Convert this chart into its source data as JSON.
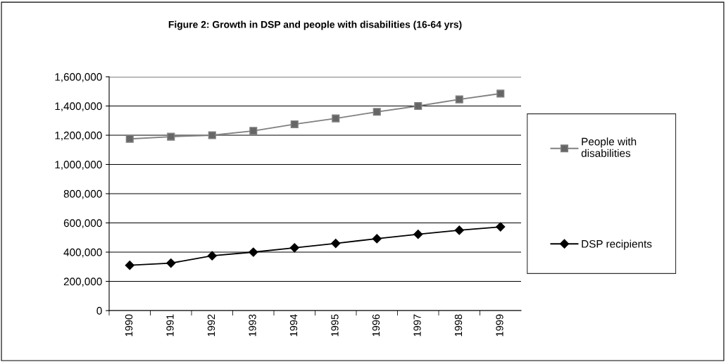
{
  "chart_data": {
    "type": "line",
    "title": "Figure 2: Growth in DSP and people with disabilities (16-64 yrs)",
    "categories": [
      "1990",
      "1991",
      "1992",
      "1993",
      "1994",
      "1995",
      "1996",
      "1997",
      "1998",
      "1999"
    ],
    "series": [
      {
        "name": "People with\ndisabilities",
        "color": "#808080",
        "marker": "square",
        "values": [
          1175000,
          1190000,
          1200000,
          1230000,
          1275000,
          1315000,
          1360000,
          1400000,
          1445000,
          1485000
        ]
      },
      {
        "name": "DSP recipients",
        "color": "#000000",
        "marker": "diamond",
        "values": [
          310000,
          325000,
          375000,
          400000,
          430000,
          460000,
          492000,
          522000,
          550000,
          573000
        ]
      }
    ],
    "ylim": [
      0,
      1600000
    ],
    "yticks": [
      {
        "value": 0,
        "label": "0"
      },
      {
        "value": 200000,
        "label": "200,000"
      },
      {
        "value": 400000,
        "label": "400,000"
      },
      {
        "value": 600000,
        "label": "600,000"
      },
      {
        "value": 800000,
        "label": "800,000"
      },
      {
        "value": 1000000,
        "label": "1,000,000"
      },
      {
        "value": 1200000,
        "label": "1,200,000"
      },
      {
        "value": 1400000,
        "label": "1,400,000"
      },
      {
        "value": 1600000,
        "label": "1,600,000"
      }
    ],
    "grid": "y",
    "legend": "right",
    "line_style": "solid"
  }
}
